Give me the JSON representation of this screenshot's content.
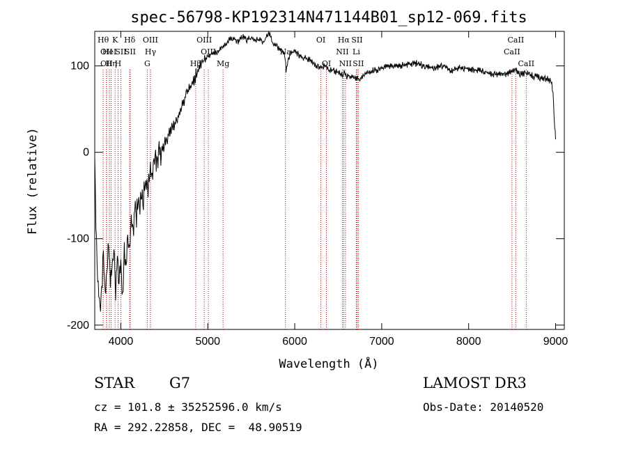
{
  "chart_data": {
    "type": "line",
    "title": "spec-56798-KP192314N471144B01_sp12-069.fits",
    "xlabel": "Wavelength (Å)",
    "ylabel": "Flux (relative)",
    "xlim": [
      3700,
      9100
    ],
    "ylim": [
      -205,
      140
    ],
    "xticks": [
      4000,
      5000,
      6000,
      7000,
      8000,
      9000
    ],
    "yticks": [
      -200,
      -100,
      0,
      100
    ],
    "grid": false,
    "series": [
      {
        "x": [
          3700,
          3720,
          3740,
          3760,
          3780,
          3800,
          3820,
          3840,
          3860,
          3880,
          3900,
          3920,
          3940,
          3960,
          3980,
          4000,
          4020,
          4040,
          4060,
          4080,
          4100,
          4120,
          4140,
          4160,
          4180,
          4200,
          4220,
          4240,
          4260,
          4280,
          4300,
          4320,
          4340,
          4360,
          4380,
          4400,
          4420,
          4440,
          4460,
          4480,
          4500,
          4550,
          4600,
          4650,
          4700,
          4750,
          4800,
          4850,
          4900,
          4950,
          5000,
          5050,
          5100,
          5150,
          5200,
          5250,
          5300,
          5350,
          5400,
          5450,
          5500,
          5550,
          5600,
          5650,
          5700,
          5750,
          5800,
          5850,
          5890,
          5900,
          5950,
          6000,
          6050,
          6100,
          6150,
          6200,
          6250,
          6300,
          6350,
          6400,
          6450,
          6500,
          6550,
          6563,
          6600,
          6650,
          6700,
          6750,
          6800,
          6850,
          6900,
          6950,
          7000,
          7100,
          7200,
          7300,
          7400,
          7500,
          7600,
          7700,
          7800,
          7900,
          8000,
          8100,
          8200,
          8300,
          8400,
          8500,
          8550,
          8600,
          8650,
          8700,
          8750,
          8800,
          8850,
          8900,
          8950,
          8970,
          8990,
          9000
        ],
        "values": [
          -5,
          -110,
          -150,
          -185,
          -160,
          -120,
          -170,
          -140,
          -100,
          -150,
          -130,
          -110,
          -160,
          -120,
          -150,
          -130,
          -175,
          -110,
          -140,
          -100,
          -120,
          -80,
          -95,
          -60,
          -75,
          -50,
          -65,
          -40,
          -55,
          -30,
          -45,
          -35,
          -15,
          -30,
          -10,
          -5,
          -20,
          0,
          -8,
          5,
          10,
          20,
          30,
          40,
          55,
          65,
          75,
          85,
          100,
          105,
          110,
          115,
          115,
          120,
          125,
          130,
          132,
          128,
          135,
          130,
          132,
          130,
          130,
          128,
          140,
          125,
          122,
          118,
          110,
          95,
          115,
          118,
          112,
          110,
          108,
          105,
          100,
          98,
          100,
          95,
          95,
          92,
          90,
          93,
          88,
          88,
          85,
          85,
          90,
          92,
          95,
          95,
          97,
          100,
          100,
          102,
          103,
          100,
          98,
          100,
          95,
          98,
          97,
          95,
          92,
          90,
          90,
          93,
          95,
          90,
          92,
          90,
          88,
          88,
          85,
          85,
          82,
          70,
          30,
          15
        ]
      }
    ],
    "line_markers": [
      {
        "w": 3797,
        "label": "Hθ",
        "row": 0
      },
      {
        "w": 3835,
        "label": "OII",
        "row": 1
      },
      {
        "w": 3835,
        "label": "OII",
        "row": 2
      },
      {
        "w": 3869,
        "label": "HeI",
        "row": 1
      },
      {
        "w": 3889,
        "label": "Hη",
        "row": 2
      },
      {
        "w": 3934,
        "label": "K",
        "row": 0
      },
      {
        "w": 3968,
        "label": "H",
        "row": 2
      },
      {
        "w": 4000,
        "label": "SII",
        "row": 1
      },
      {
        "w": 4102,
        "label": "Hδ",
        "row": 0
      },
      {
        "w": 4108,
        "label": "SII",
        "row": 1
      },
      {
        "w": 4340,
        "label": "OIII",
        "row": 0
      },
      {
        "w": 4341,
        "label": "Hγ",
        "row": 1
      },
      {
        "w": 4304,
        "label": "G",
        "row": 2
      },
      {
        "w": 4861,
        "label": "Hβ",
        "row": 2
      },
      {
        "w": 4959,
        "label": "OIII",
        "row": 0
      },
      {
        "w": 5007,
        "label": "OIII",
        "row": 1
      },
      {
        "w": 5175,
        "label": "Mg",
        "row": 2
      },
      {
        "w": 5893,
        "label": "Na",
        "row": 1
      },
      {
        "w": 6300,
        "label": "OI",
        "row": 0
      },
      {
        "w": 6364,
        "label": "OI",
        "row": 2
      },
      {
        "w": 6548,
        "label": "NII",
        "row": 1
      },
      {
        "w": 6563,
        "label": "Hα",
        "row": 0
      },
      {
        "w": 6583,
        "label": "NII",
        "row": 2
      },
      {
        "w": 6708,
        "label": "Li",
        "row": 1
      },
      {
        "w": 6716,
        "label": "SII",
        "row": 0
      },
      {
        "w": 6731,
        "label": "SII",
        "row": 2
      },
      {
        "w": 8498,
        "label": "CaII",
        "row": 1
      },
      {
        "w": 8542,
        "label": "CaII",
        "row": 0
      },
      {
        "w": 8662,
        "label": "CaII",
        "row": 2
      }
    ]
  },
  "info": {
    "class_label": "STAR",
    "subclass": "G7",
    "survey": "LAMOST DR3",
    "cz": "cz = 101.8 ± 35252596.0 km/s",
    "obs_date": "Obs-Date: 20140520",
    "coords": "RA = 292.22858, DEC =  48.90519"
  }
}
